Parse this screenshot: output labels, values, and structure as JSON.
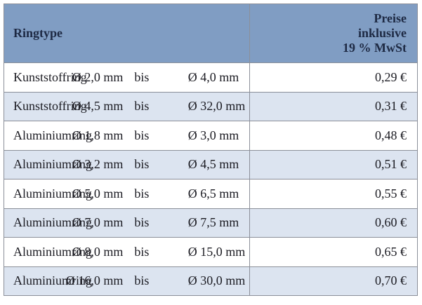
{
  "table": {
    "header": {
      "type": "Ringtype",
      "price": [
        "Preise",
        "inklusive",
        "19 % MwSt"
      ]
    },
    "rows": [
      [
        "Kunststoffring",
        "Ø 2,0 mm",
        "bis",
        "Ø 4,0 mm",
        "0,29 €"
      ],
      [
        "Kunststoffring",
        "Ø 4,5 mm",
        "bis",
        "Ø 32,0 mm",
        "0,31 €"
      ],
      [
        "Aluminiumring",
        "Ø 1,8 mm",
        "bis",
        "Ø 3,0 mm",
        "0,48 €"
      ],
      [
        "Aluminiumring",
        "Ø 3,2 mm",
        "bis",
        "Ø 4,5 mm",
        "0,51 €"
      ],
      [
        "Aluminiumring",
        "Ø 5,0 mm",
        "bis",
        "Ø 6,5 mm",
        "0,55 €"
      ],
      [
        "Aluminiumring",
        "Ø 7,0 mm",
        "bis",
        "Ø 7,5 mm",
        "0,60 €"
      ],
      [
        "Aluminiumring",
        "Ø 8,0 mm",
        "bis",
        "Ø 15,0 mm",
        "0,65 €"
      ],
      [
        "Aluminiumring",
        "Ø 16,0 mm",
        "bis",
        "Ø 30,0 mm",
        "0,70 €"
      ]
    ]
  }
}
